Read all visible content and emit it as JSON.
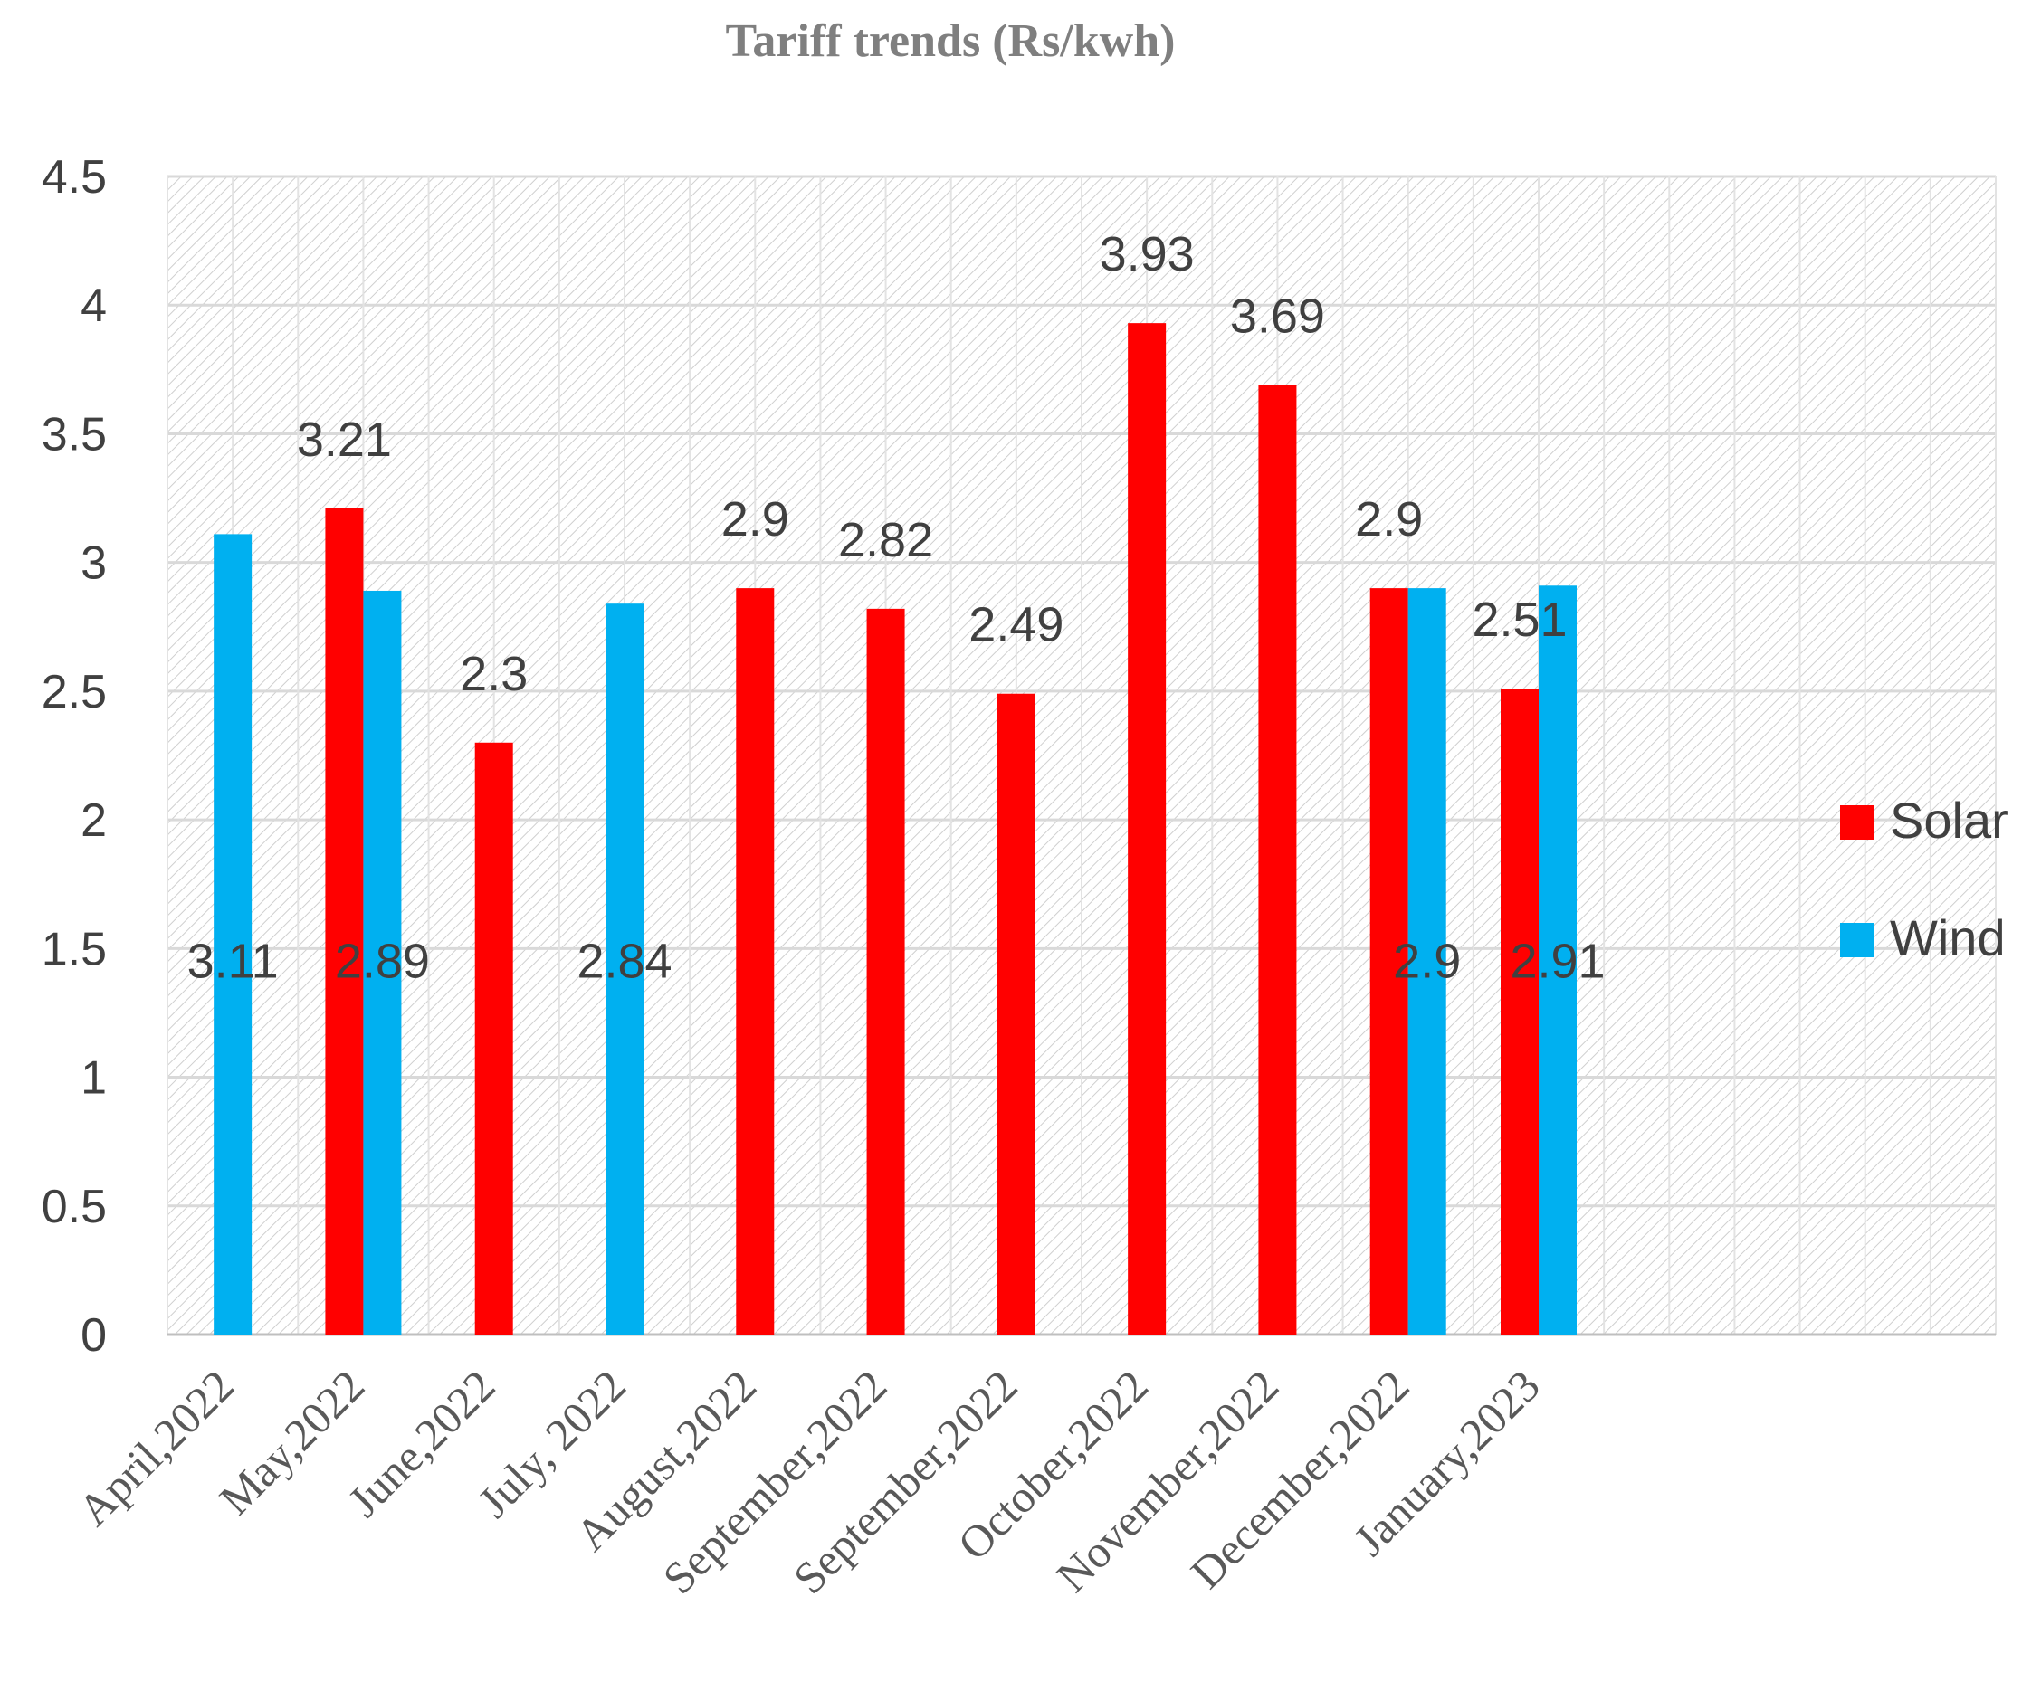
{
  "chart_data": {
    "type": "bar",
    "title": "Tariff trends (Rs/kwh)",
    "xlabel": "",
    "ylabel": "",
    "ylim": [
      0,
      4.5
    ],
    "yticks": [
      "0",
      "0.5",
      "1",
      "1.5",
      "2",
      "2.5",
      "3",
      "3.5",
      "4",
      "4.5"
    ],
    "categories": [
      "April,2022",
      "May,2022",
      "June,2022",
      "July, 2022",
      "August,2022",
      "September,2022",
      "September,2022",
      "October,2022",
      "November,2022",
      "December,2022",
      "January,2023"
    ],
    "empty_slots_after": 3,
    "series": [
      {
        "name": "Solar",
        "color": "#ff0000",
        "values": [
          null,
          3.21,
          2.3,
          null,
          2.9,
          2.82,
          2.49,
          3.93,
          3.69,
          2.9,
          2.51
        ],
        "labels": [
          null,
          "3.21",
          "2.3",
          null,
          "2.9",
          "2.82",
          "2.49",
          "3.93",
          "3.69",
          "2.9",
          "2.51"
        ]
      },
      {
        "name": "Wind",
        "color": "#00b0f0",
        "values": [
          3.11,
          2.89,
          null,
          2.84,
          null,
          null,
          null,
          null,
          null,
          2.9,
          2.91
        ],
        "labels": [
          "3.11",
          "2.89",
          null,
          "2.84",
          null,
          null,
          null,
          null,
          null,
          "2.9",
          "2.91"
        ]
      }
    ],
    "legend": "right"
  }
}
